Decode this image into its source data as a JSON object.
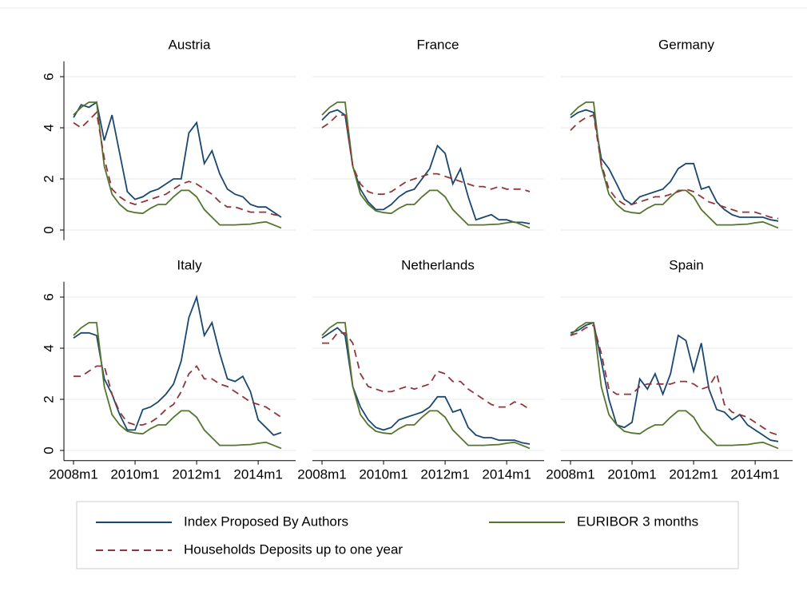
{
  "chart_data": {
    "type": "line",
    "x": [
      "2008m1",
      "2008m4",
      "2008m7",
      "2008m10",
      "2009m1",
      "2009m4",
      "2009m7",
      "2009m10",
      "2010m1",
      "2010m4",
      "2010m7",
      "2010m10",
      "2011m1",
      "2011m4",
      "2011m7",
      "2011m10",
      "2012m1",
      "2012m4",
      "2012m7",
      "2012m10",
      "2013m1",
      "2013m4",
      "2013m7",
      "2013m10",
      "2014m1",
      "2014m4",
      "2014m7",
      "2014m10"
    ],
    "xticks": [
      "2008m1",
      "2010m1",
      "2012m1",
      "2014m1"
    ],
    "ylim": [
      -0.4,
      6.6
    ],
    "yticks": [
      0,
      2,
      4,
      6
    ],
    "grid": true,
    "series": [
      {
        "name": "Index Proposed By Authors",
        "color": "#1a476f",
        "dash": false
      },
      {
        "name": "EURIBOR 3 months",
        "color": "#55752f",
        "dash": false
      },
      {
        "name": "Households Deposits up to one year",
        "color": "#90353b",
        "dash": true
      }
    ],
    "panels": [
      {
        "title": "Austria",
        "series": [
          {
            "values": [
              4.4,
              4.9,
              4.8,
              5.0,
              3.5,
              4.5,
              3.0,
              1.5,
              1.2,
              1.3,
              1.5,
              1.6,
              1.8,
              2.0,
              2.0,
              3.8,
              4.2,
              2.6,
              3.1,
              2.2,
              1.6,
              1.4,
              1.3,
              1.0,
              0.9,
              0.9,
              0.7,
              0.5
            ]
          },
          {
            "values": [
              4.5,
              4.8,
              5.0,
              5.0,
              2.5,
              1.4,
              1.0,
              0.75,
              0.68,
              0.65,
              0.85,
              1.0,
              1.0,
              1.3,
              1.55,
              1.55,
              1.3,
              0.8,
              0.5,
              0.2,
              0.2,
              0.2,
              0.22,
              0.23,
              0.28,
              0.32,
              0.2,
              0.08
            ]
          },
          {
            "values": [
              4.2,
              4.0,
              4.3,
              4.6,
              2.8,
              1.6,
              1.3,
              1.1,
              1.0,
              1.1,
              1.2,
              1.3,
              1.4,
              1.6,
              1.8,
              1.9,
              1.8,
              1.6,
              1.4,
              1.1,
              0.9,
              0.9,
              0.8,
              0.7,
              0.7,
              0.7,
              0.6,
              0.55
            ]
          }
        ]
      },
      {
        "title": "France",
        "series": [
          {
            "values": [
              4.3,
              4.6,
              4.7,
              4.5,
              2.5,
              1.6,
              1.1,
              0.8,
              0.8,
              1.0,
              1.3,
              1.5,
              1.6,
              2.0,
              2.4,
              3.3,
              3.0,
              1.8,
              2.4,
              1.3,
              0.4,
              0.5,
              0.6,
              0.4,
              0.4,
              0.3,
              0.3,
              0.25
            ]
          },
          {
            "values": [
              4.5,
              4.8,
              5.0,
              5.0,
              2.5,
              1.4,
              1.0,
              0.75,
              0.68,
              0.65,
              0.85,
              1.0,
              1.0,
              1.3,
              1.55,
              1.55,
              1.3,
              0.8,
              0.5,
              0.2,
              0.2,
              0.2,
              0.22,
              0.23,
              0.28,
              0.32,
              0.2,
              0.08
            ]
          },
          {
            "values": [
              4.0,
              4.2,
              4.5,
              4.5,
              2.5,
              1.8,
              1.5,
              1.4,
              1.4,
              1.5,
              1.7,
              1.9,
              2.0,
              2.1,
              2.2,
              2.2,
              2.1,
              2.0,
              1.9,
              1.8,
              1.7,
              1.7,
              1.6,
              1.7,
              1.6,
              1.6,
              1.6,
              1.5
            ]
          }
        ]
      },
      {
        "title": "Germany",
        "series": [
          {
            "values": [
              4.4,
              4.6,
              4.7,
              4.6,
              2.8,
              2.4,
              1.8,
              1.2,
              1.0,
              1.3,
              1.4,
              1.5,
              1.6,
              1.9,
              2.4,
              2.6,
              2.6,
              1.6,
              1.7,
              1.1,
              0.8,
              0.6,
              0.5,
              0.5,
              0.5,
              0.5,
              0.4,
              0.35
            ]
          },
          {
            "values": [
              4.5,
              4.8,
              5.0,
              5.0,
              2.5,
              1.4,
              1.0,
              0.75,
              0.68,
              0.65,
              0.85,
              1.0,
              1.0,
              1.3,
              1.55,
              1.55,
              1.3,
              0.8,
              0.5,
              0.2,
              0.2,
              0.2,
              0.22,
              0.23,
              0.28,
              0.32,
              0.2,
              0.08
            ]
          },
          {
            "values": [
              3.9,
              4.2,
              4.4,
              4.5,
              2.6,
              1.6,
              1.2,
              1.0,
              1.0,
              1.1,
              1.2,
              1.3,
              1.3,
              1.4,
              1.5,
              1.6,
              1.5,
              1.3,
              1.1,
              1.0,
              0.9,
              0.8,
              0.7,
              0.7,
              0.7,
              0.6,
              0.5,
              0.45
            ]
          }
        ]
      },
      {
        "title": "Italy",
        "series": [
          {
            "values": [
              4.4,
              4.6,
              4.6,
              4.5,
              2.8,
              2.2,
              1.4,
              0.8,
              0.8,
              1.6,
              1.7,
              1.9,
              2.2,
              2.6,
              3.5,
              5.2,
              6.0,
              4.5,
              5.0,
              3.8,
              2.8,
              2.7,
              2.9,
              2.3,
              1.2,
              0.9,
              0.6,
              0.7
            ]
          },
          {
            "values": [
              4.5,
              4.8,
              5.0,
              5.0,
              2.5,
              1.4,
              1.0,
              0.75,
              0.68,
              0.65,
              0.85,
              1.0,
              1.0,
              1.3,
              1.55,
              1.55,
              1.3,
              0.8,
              0.5,
              0.2,
              0.2,
              0.2,
              0.22,
              0.23,
              0.28,
              0.32,
              0.2,
              0.08
            ]
          },
          {
            "values": [
              2.9,
              2.9,
              3.1,
              3.3,
              3.3,
              2.2,
              1.5,
              1.1,
              1.0,
              1.0,
              1.1,
              1.3,
              1.6,
              1.8,
              2.3,
              3.0,
              3.3,
              2.8,
              2.8,
              2.6,
              2.5,
              2.3,
              2.1,
              1.9,
              1.8,
              1.7,
              1.5,
              1.3
            ]
          }
        ]
      },
      {
        "title": "Netherlands",
        "series": [
          {
            "values": [
              4.4,
              4.6,
              4.8,
              4.5,
              2.5,
              1.7,
              1.2,
              0.9,
              0.8,
              0.9,
              1.2,
              1.3,
              1.4,
              1.5,
              1.7,
              2.1,
              2.1,
              1.5,
              1.6,
              0.9,
              0.6,
              0.5,
              0.5,
              0.4,
              0.4,
              0.4,
              0.3,
              0.25
            ]
          },
          {
            "values": [
              4.5,
              4.8,
              5.0,
              5.0,
              2.5,
              1.4,
              1.0,
              0.75,
              0.68,
              0.65,
              0.85,
              1.0,
              1.0,
              1.3,
              1.55,
              1.55,
              1.3,
              0.8,
              0.5,
              0.2,
              0.2,
              0.2,
              0.22,
              0.23,
              0.28,
              0.32,
              0.2,
              0.08
            ]
          },
          {
            "values": [
              4.2,
              4.2,
              4.6,
              4.6,
              4.2,
              3.0,
              2.5,
              2.4,
              2.3,
              2.3,
              2.4,
              2.5,
              2.4,
              2.5,
              2.6,
              3.1,
              3.0,
              2.7,
              2.7,
              2.4,
              2.2,
              2.0,
              1.8,
              1.7,
              1.7,
              1.9,
              1.8,
              1.6
            ]
          }
        ]
      },
      {
        "title": "Spain",
        "series": [
          {
            "values": [
              4.6,
              4.7,
              4.9,
              5.0,
              3.5,
              2.0,
              1.0,
              0.9,
              1.1,
              2.8,
              2.4,
              3.0,
              2.2,
              3.0,
              4.5,
              4.3,
              3.1,
              4.2,
              2.4,
              1.6,
              1.5,
              1.2,
              1.4,
              1.0,
              0.8,
              0.6,
              0.4,
              0.35
            ]
          },
          {
            "values": [
              4.5,
              4.8,
              5.0,
              5.0,
              2.5,
              1.4,
              1.0,
              0.75,
              0.68,
              0.65,
              0.85,
              1.0,
              1.0,
              1.3,
              1.55,
              1.55,
              1.3,
              0.8,
              0.5,
              0.2,
              0.2,
              0.2,
              0.22,
              0.23,
              0.28,
              0.32,
              0.2,
              0.08
            ]
          },
          {
            "values": [
              4.5,
              4.6,
              4.8,
              4.9,
              3.8,
              2.4,
              2.2,
              2.2,
              2.2,
              2.5,
              2.6,
              2.6,
              2.6,
              2.6,
              2.7,
              2.7,
              2.6,
              2.4,
              2.5,
              3.0,
              1.8,
              1.5,
              1.4,
              1.3,
              1.1,
              0.9,
              0.7,
              0.6
            ]
          }
        ]
      }
    ]
  }
}
